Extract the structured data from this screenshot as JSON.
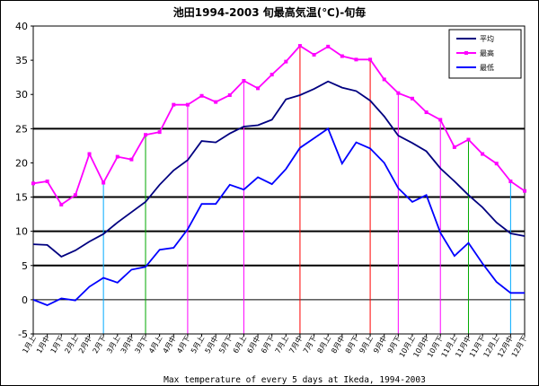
{
  "chart_data": {
    "type": "line",
    "title": "池田1994-2003 旬最高気温(℃)-旬毎",
    "caption": "Max temperature of every 5 days at Ikeda, 1994-2003",
    "ylim": [
      -5,
      40
    ],
    "yticks": [
      -5,
      0,
      5,
      10,
      15,
      20,
      25,
      30,
      35,
      40
    ],
    "legend_position": "top-right",
    "grid": "horizontal",
    "categories": [
      "1月上",
      "1月中",
      "1月下",
      "2月上",
      "2月中",
      "2月下",
      "3月上",
      "3月中",
      "3月下",
      "4月上",
      "4月中",
      "4月下",
      "5月上",
      "5月中",
      "5月下",
      "6月上",
      "6月中",
      "6月下",
      "7月上",
      "7月中",
      "7月下",
      "8月上",
      "8月中",
      "8月下",
      "9月上",
      "9月中",
      "9月下",
      "10月上",
      "10月中",
      "10月下",
      "11月上",
      "11月中",
      "11月下",
      "12月上",
      "12月中",
      "12月下"
    ],
    "series": [
      {
        "name": "平均",
        "color": "#000080",
        "values": [
          8.1,
          8.0,
          6.3,
          7.2,
          8.5,
          9.6,
          11.3,
          12.8,
          14.3,
          16.8,
          18.9,
          20.4,
          23.2,
          23.0,
          24.3,
          25.3,
          25.5,
          26.3,
          29.3,
          29.9,
          30.8,
          31.9,
          31.0,
          30.5,
          29.1,
          26.8,
          24.0,
          22.9,
          21.7,
          19.2,
          17.3,
          15.3,
          13.5,
          11.3,
          9.7,
          9.3
        ]
      },
      {
        "name": "最高",
        "color": "#ff00ff",
        "values": [
          17.0,
          17.3,
          13.9,
          15.3,
          21.3,
          17.1,
          20.9,
          20.5,
          24.1,
          24.5,
          28.5,
          28.5,
          29.8,
          28.9,
          29.9,
          32.0,
          30.9,
          32.9,
          34.8,
          37.1,
          35.8,
          37.0,
          35.6,
          35.1,
          35.1,
          32.2,
          30.2,
          29.4,
          27.4,
          26.3,
          22.3,
          23.4,
          21.3,
          19.9,
          17.3,
          15.9
        ]
      },
      {
        "name": "最低",
        "color": "#0000ff",
        "values": [
          0.0,
          -0.8,
          0.2,
          -0.1,
          1.9,
          3.2,
          2.5,
          4.4,
          4.8,
          7.3,
          7.6,
          10.3,
          14.0,
          14.0,
          16.8,
          16.1,
          17.9,
          16.9,
          19.1,
          22.2,
          23.6,
          25.0,
          19.9,
          23.0,
          22.1,
          20.0,
          16.3,
          14.3,
          15.3,
          9.8,
          6.4,
          8.3,
          5.3,
          2.6,
          1.0,
          1.0
        ]
      }
    ],
    "markers": [
      {
        "category": "2月下",
        "color": "#00aaff"
      },
      {
        "category": "3月下",
        "color": "#00aa00"
      },
      {
        "category": "4月下",
        "color": "#ff00ff"
      },
      {
        "category": "6月上",
        "color": "#ff00ff"
      },
      {
        "category": "7月中",
        "color": "#ff0000"
      },
      {
        "category": "9月上",
        "color": "#ff0000"
      },
      {
        "category": "9月下",
        "color": "#ff00ff"
      },
      {
        "category": "10月下",
        "color": "#ff00ff"
      },
      {
        "category": "11月中",
        "color": "#00aa00"
      },
      {
        "category": "12月中",
        "color": "#00aaff"
      }
    ],
    "threshold_lines": [
      {
        "value": 0,
        "width": "thin"
      },
      {
        "value": 5,
        "width": "thick"
      },
      {
        "value": 10,
        "width": "thick"
      },
      {
        "value": 15,
        "width": "thick"
      },
      {
        "value": 25,
        "width": "thick"
      }
    ]
  }
}
